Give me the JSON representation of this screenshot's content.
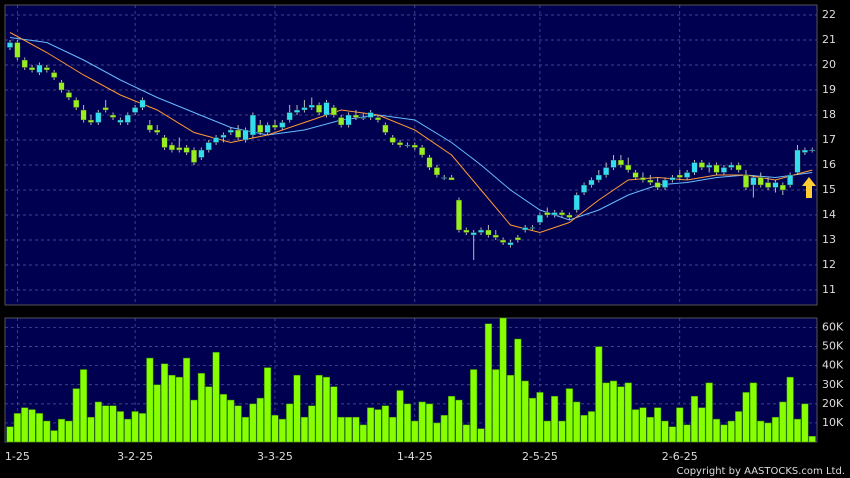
{
  "chart_data": [
    {
      "type": "candlestick",
      "ohlc": [
        [
          20.7,
          21.0,
          20.6,
          20.9
        ],
        [
          20.9,
          21.0,
          20.2,
          20.3
        ],
        [
          20.2,
          20.3,
          19.8,
          19.9
        ],
        [
          19.9,
          20.0,
          19.7,
          19.8
        ],
        [
          19.7,
          20.1,
          19.6,
          20.0
        ],
        [
          19.9,
          20.0,
          19.7,
          19.8
        ],
        [
          19.7,
          19.8,
          19.4,
          19.5
        ],
        [
          19.3,
          19.4,
          18.9,
          19.0
        ],
        [
          18.9,
          19.0,
          18.6,
          18.7
        ],
        [
          18.6,
          18.7,
          18.2,
          18.3
        ],
        [
          18.2,
          18.4,
          17.7,
          17.8
        ],
        [
          17.8,
          18.0,
          17.6,
          17.7
        ],
        [
          17.7,
          18.2,
          17.6,
          18.1
        ],
        [
          18.3,
          18.6,
          18.1,
          18.2
        ],
        [
          18.0,
          18.1,
          17.8,
          17.9
        ],
        [
          17.7,
          17.9,
          17.6,
          17.8
        ],
        [
          17.7,
          18.1,
          17.6,
          18.0
        ],
        [
          18.1,
          18.4,
          18.0,
          18.3
        ],
        [
          18.3,
          18.7,
          18.2,
          18.6
        ],
        [
          17.6,
          17.8,
          17.3,
          17.4
        ],
        [
          17.4,
          17.6,
          17.2,
          17.3
        ],
        [
          17.1,
          17.2,
          16.6,
          16.7
        ],
        [
          16.8,
          16.9,
          16.5,
          16.6
        ],
        [
          16.7,
          17.1,
          16.5,
          16.6
        ],
        [
          16.7,
          16.8,
          16.4,
          16.5
        ],
        [
          16.6,
          16.7,
          16.0,
          16.1
        ],
        [
          16.3,
          16.7,
          16.2,
          16.6
        ],
        [
          16.6,
          17.0,
          16.5,
          16.9
        ],
        [
          16.9,
          17.2,
          16.8,
          17.1
        ],
        [
          17.1,
          17.3,
          16.9,
          17.2
        ],
        [
          17.3,
          17.5,
          17.2,
          17.4
        ],
        [
          17.4,
          17.6,
          17.0,
          17.1
        ],
        [
          17.0,
          17.5,
          16.9,
          17.4
        ],
        [
          17.2,
          18.1,
          17.1,
          18.0
        ],
        [
          17.6,
          17.8,
          17.2,
          17.3
        ],
        [
          17.3,
          17.7,
          17.2,
          17.6
        ],
        [
          17.6,
          17.8,
          17.4,
          17.5
        ],
        [
          17.5,
          17.8,
          17.4,
          17.7
        ],
        [
          17.8,
          18.4,
          17.7,
          18.1
        ],
        [
          18.1,
          18.4,
          18.0,
          18.2
        ],
        [
          18.2,
          18.6,
          18.1,
          18.3
        ],
        [
          18.3,
          18.7,
          18.2,
          18.4
        ],
        [
          18.4,
          18.5,
          18.0,
          18.1
        ],
        [
          18.0,
          18.6,
          17.9,
          18.5
        ],
        [
          18.3,
          18.4,
          17.9,
          18.0
        ],
        [
          17.9,
          18.0,
          17.5,
          17.6
        ],
        [
          17.6,
          18.1,
          17.5,
          18.0
        ],
        [
          18.0,
          18.2,
          17.8,
          17.9
        ],
        [
          17.9,
          18.1,
          17.8,
          17.9
        ],
        [
          17.9,
          18.2,
          17.8,
          18.1
        ],
        [
          17.9,
          18.0,
          17.7,
          17.8
        ],
        [
          17.6,
          17.7,
          17.2,
          17.3
        ],
        [
          17.1,
          17.2,
          16.8,
          16.9
        ],
        [
          16.9,
          17.0,
          16.7,
          16.8
        ],
        [
          16.8,
          16.9,
          16.7,
          16.8
        ],
        [
          16.8,
          16.9,
          16.6,
          16.7
        ],
        [
          16.7,
          16.8,
          16.3,
          16.4
        ],
        [
          16.3,
          16.4,
          15.8,
          15.9
        ],
        [
          15.9,
          16.0,
          15.5,
          15.6
        ],
        [
          15.5,
          15.6,
          15.4,
          15.5
        ],
        [
          15.5,
          15.6,
          15.4,
          15.4
        ],
        [
          14.6,
          14.7,
          13.3,
          13.4
        ],
        [
          13.4,
          13.5,
          13.2,
          13.3
        ],
        [
          13.2,
          13.4,
          12.2,
          13.3
        ],
        [
          13.3,
          13.5,
          13.2,
          13.4
        ],
        [
          13.4,
          13.6,
          13.1,
          13.2
        ],
        [
          13.2,
          13.4,
          13.0,
          13.1
        ],
        [
          13.0,
          13.1,
          12.8,
          12.9
        ],
        [
          12.8,
          13.0,
          12.7,
          12.9
        ],
        [
          13.1,
          13.2,
          12.9,
          13.0
        ],
        [
          13.4,
          13.6,
          13.3,
          13.5
        ],
        [
          13.5,
          13.6,
          13.4,
          13.5
        ],
        [
          13.7,
          14.1,
          13.6,
          14.0
        ],
        [
          14.1,
          14.3,
          13.9,
          14.0
        ],
        [
          14.0,
          14.2,
          13.9,
          14.1
        ],
        [
          14.1,
          14.2,
          13.9,
          14.0
        ],
        [
          14.0,
          14.1,
          13.8,
          13.9
        ],
        [
          14.2,
          14.9,
          14.1,
          14.8
        ],
        [
          14.9,
          15.3,
          14.8,
          15.2
        ],
        [
          15.2,
          15.5,
          15.1,
          15.4
        ],
        [
          15.4,
          15.8,
          15.3,
          15.6
        ],
        [
          15.6,
          16.1,
          15.5,
          15.9
        ],
        [
          15.9,
          16.4,
          15.8,
          16.2
        ],
        [
          16.2,
          16.4,
          15.9,
          16.0
        ],
        [
          16.0,
          16.3,
          15.7,
          15.8
        ],
        [
          15.7,
          15.8,
          15.4,
          15.5
        ],
        [
          15.5,
          15.7,
          15.3,
          15.4
        ],
        [
          15.4,
          15.6,
          15.2,
          15.3
        ],
        [
          15.3,
          15.5,
          15.0,
          15.1
        ],
        [
          15.1,
          15.5,
          15.0,
          15.4
        ],
        [
          15.4,
          15.6,
          15.3,
          15.5
        ],
        [
          15.6,
          15.8,
          15.4,
          15.5
        ],
        [
          15.5,
          15.8,
          15.4,
          15.7
        ],
        [
          15.7,
          16.2,
          15.6,
          16.1
        ],
        [
          16.1,
          16.2,
          15.8,
          15.9
        ],
        [
          15.9,
          16.1,
          15.7,
          16.0
        ],
        [
          16.0,
          16.1,
          15.6,
          15.7
        ],
        [
          15.7,
          16.0,
          15.6,
          15.9
        ],
        [
          15.9,
          16.1,
          15.8,
          16.0
        ],
        [
          16.0,
          16.1,
          15.7,
          15.8
        ],
        [
          15.6,
          15.8,
          15.0,
          15.1
        ],
        [
          15.2,
          15.6,
          14.7,
          15.5
        ],
        [
          15.5,
          15.7,
          15.1,
          15.2
        ],
        [
          15.3,
          15.5,
          15.0,
          15.1
        ],
        [
          15.1,
          15.4,
          14.9,
          15.3
        ],
        [
          15.2,
          15.3,
          14.8,
          15.0
        ],
        [
          15.2,
          15.7,
          15.1,
          15.6
        ],
        [
          15.7,
          16.8,
          15.6,
          16.6
        ],
        [
          16.5,
          16.7,
          16.4,
          16.6
        ],
        [
          16.6,
          16.7,
          16.5,
          16.6
        ]
      ],
      "up_color": "#33ddee",
      "down_color": "#99ee22",
      "series": [
        {
          "color": "#66bbff",
          "x": [
            0,
            5,
            10,
            15,
            20,
            25,
            30,
            35,
            40,
            45,
            50,
            55,
            60,
            64,
            68,
            72,
            76,
            80,
            84,
            88,
            92,
            96,
            100,
            104,
            109
          ],
          "values": [
            21.1,
            20.9,
            20.2,
            19.4,
            18.7,
            18.1,
            17.5,
            17.2,
            17.4,
            17.8,
            18.0,
            17.8,
            16.9,
            16.0,
            15.0,
            14.2,
            13.8,
            14.2,
            14.8,
            15.2,
            15.3,
            15.5,
            15.6,
            15.5,
            15.7
          ]
        },
        {
          "color": "#ff9933",
          "x": [
            0,
            5,
            10,
            15,
            20,
            25,
            30,
            35,
            40,
            45,
            50,
            55,
            60,
            64,
            68,
            72,
            76,
            80,
            84,
            88,
            92,
            96,
            100,
            104,
            109
          ],
          "values": [
            21.3,
            20.5,
            19.6,
            18.8,
            18.2,
            17.3,
            16.9,
            17.2,
            17.7,
            18.2,
            18.0,
            17.4,
            16.4,
            15.0,
            13.6,
            13.3,
            13.7,
            14.6,
            15.4,
            15.5,
            15.4,
            15.6,
            15.6,
            15.4,
            15.8
          ]
        }
      ],
      "ylim": [
        10.4,
        22.4
      ],
      "yticks": [
        11,
        12,
        13,
        14,
        15,
        16,
        17,
        18,
        19,
        20,
        21,
        22
      ],
      "xticks": [
        1,
        17,
        36,
        55,
        72,
        91
      ],
      "grid": true
    },
    {
      "type": "bar",
      "values": [
        8000,
        15000,
        18000,
        17000,
        15000,
        11000,
        6000,
        12000,
        11000,
        28000,
        38000,
        13000,
        21000,
        19000,
        19000,
        16000,
        12000,
        16000,
        15000,
        44000,
        30000,
        41000,
        35000,
        34000,
        44000,
        22000,
        36000,
        29000,
        47000,
        25000,
        22000,
        19000,
        13000,
        20000,
        23000,
        39000,
        14000,
        12000,
        20000,
        35000,
        13000,
        19000,
        35000,
        34000,
        29000,
        13000,
        13000,
        13000,
        9000,
        18000,
        17000,
        19000,
        13000,
        27000,
        20000,
        11000,
        21000,
        20000,
        10000,
        14000,
        24000,
        22000,
        9000,
        38000,
        7000,
        62000,
        38000,
        65000,
        35000,
        54000,
        32000,
        23000,
        26000,
        11000,
        24000,
        11000,
        28000,
        21000,
        14000,
        16000,
        50000,
        31000,
        32000,
        29000,
        31000,
        17000,
        18000,
        13000,
        18000,
        11000,
        8000,
        18000,
        9000,
        24000,
        18000,
        31000,
        12000,
        9000,
        11000,
        16000,
        26000,
        31000,
        11000,
        10000,
        13000,
        21000,
        34000,
        12000,
        20000,
        3000
      ],
      "color": "#88ff00",
      "ylim": [
        0,
        65000
      ],
      "yticks": [
        {
          "value": 10000,
          "label": "10K"
        },
        {
          "value": 20000,
          "label": "20K"
        },
        {
          "value": 30000,
          "label": "30K"
        },
        {
          "value": 40000,
          "label": "40K"
        },
        {
          "value": 50000,
          "label": "50K"
        },
        {
          "value": 60000,
          "label": "60K"
        }
      ],
      "xticks": [
        {
          "value": 1,
          "label": "1-25"
        },
        {
          "value": 17,
          "label": "3-2-25"
        },
        {
          "value": 36,
          "label": "3-3-25"
        },
        {
          "value": 55,
          "label": "1-4-25"
        },
        {
          "value": 72,
          "label": "2-5-25"
        },
        {
          "value": 91,
          "label": "2-6-25"
        }
      ],
      "grid": true
    }
  ],
  "copyright": "Copyright by AASTOCKS.com Ltd."
}
